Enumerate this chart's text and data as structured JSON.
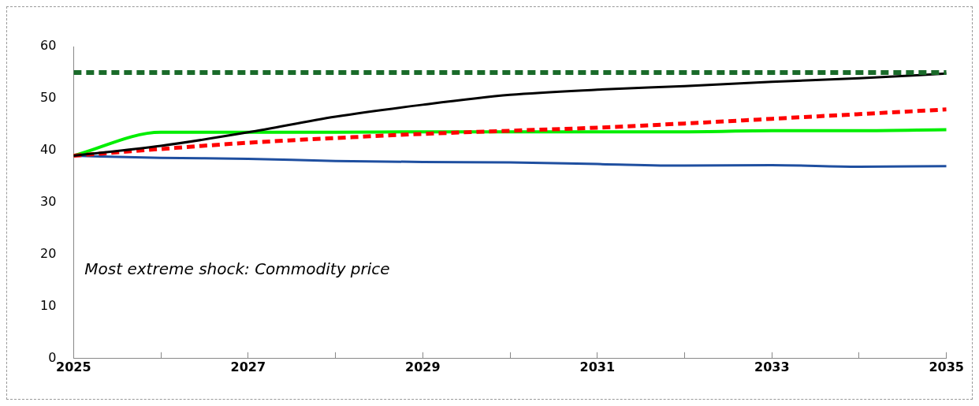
{
  "chart_data": {
    "type": "line",
    "x": [
      2025,
      2026,
      2027,
      2028,
      2029,
      2030,
      2031,
      2032,
      2033,
      2034,
      2035
    ],
    "xlim": [
      2025,
      2035
    ],
    "xticks": [
      2025,
      {
        "value": 2026,
        "label": null
      },
      2027,
      {
        "value": 2028,
        "label": null
      },
      2029,
      {
        "value": 2030,
        "label": null
      },
      2031,
      {
        "value": 2032,
        "label": null
      },
      2033,
      {
        "value": 2034,
        "label": null
      },
      2035
    ],
    "ylim": [
      0,
      60
    ],
    "yticks": [
      0,
      10,
      20,
      30,
      40,
      50,
      60
    ],
    "grid": false,
    "legend": false,
    "marker": "none",
    "annotations": [
      "Most extreme shock: Commodity price"
    ],
    "series": [
      {
        "color": "#1a6b2a",
        "line_style": "dashed",
        "values": [
          55,
          55,
          55,
          55,
          55,
          55,
          55,
          55,
          55,
          55,
          55
        ]
      },
      {
        "color": "#000000",
        "line_style": "solid",
        "values": [
          39,
          40.9,
          43.5,
          46.5,
          48.8,
          50.7,
          51.7,
          52.4,
          53.2,
          53.9,
          54.8
        ]
      },
      {
        "color": "#ff0000",
        "line_style": "dashed",
        "values": [
          39,
          40.3,
          41.5,
          42.4,
          43.2,
          43.8,
          44.4,
          45.2,
          46.1,
          47,
          47.9
        ]
      },
      {
        "color": "#00ee00",
        "line_style": "solid",
        "values": [
          39,
          43.5,
          43.5,
          43.5,
          43.6,
          43.6,
          43.6,
          43.6,
          43.8,
          43.8,
          44
        ]
      },
      {
        "color": "#1f4fa0",
        "line_style": "solid",
        "values": [
          39,
          38.6,
          38.4,
          38,
          37.8,
          37.7,
          37.4,
          37.1,
          37.2,
          36.9,
          37
        ]
      }
    ]
  }
}
